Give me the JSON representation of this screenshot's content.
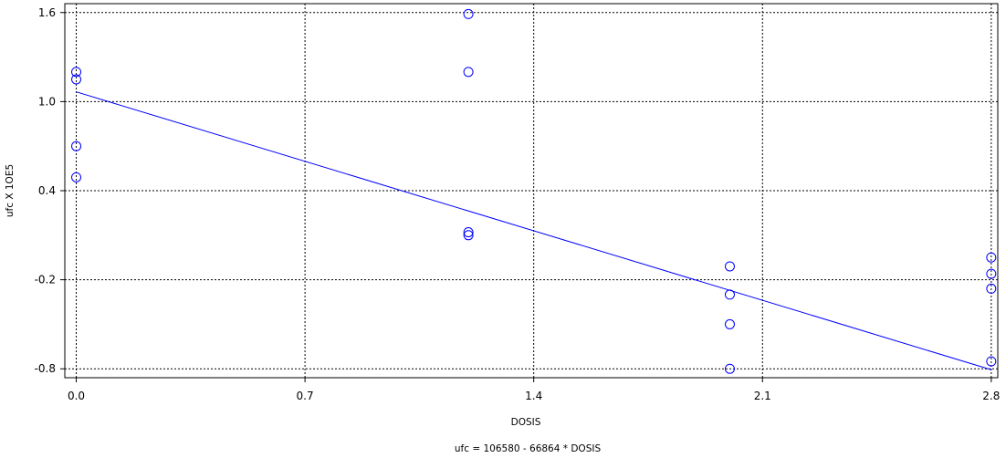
{
  "chart_data": {
    "type": "scatter",
    "xlabel": "DOSIS",
    "ylabel": "ufc X 1OE5",
    "equation": "ufc = 106580 -  66864 * DOSIS",
    "xlim": [
      -0.035,
      2.82
    ],
    "ylim": [
      -0.86,
      1.66
    ],
    "x_ticks": [
      0.0,
      0.7,
      1.4,
      2.1,
      2.8
    ],
    "x_tick_labels": [
      "0.0",
      "0.7",
      "1.4",
      "2.1",
      "2.8"
    ],
    "y_ticks": [
      -0.8,
      -0.2,
      0.4,
      1.0,
      1.6
    ],
    "y_tick_labels": [
      "-0.8",
      "-0.2",
      "0.4",
      "1.0",
      "1.6"
    ],
    "grid": true,
    "series": [
      {
        "marker": "circle",
        "color": "#0000ff",
        "points": [
          {
            "x": 0.0,
            "y": 1.2
          },
          {
            "x": 0.0,
            "y": 1.15
          },
          {
            "x": 0.0,
            "y": 0.7
          },
          {
            "x": 0.0,
            "y": 0.49
          },
          {
            "x": 1.2,
            "y": 1.59
          },
          {
            "x": 1.2,
            "y": 1.2
          },
          {
            "x": 1.2,
            "y": 0.12
          },
          {
            "x": 1.2,
            "y": 0.1
          },
          {
            "x": 2.0,
            "y": -0.11
          },
          {
            "x": 2.0,
            "y": -0.3
          },
          {
            "x": 2.0,
            "y": -0.5
          },
          {
            "x": 2.0,
            "y": -0.8
          },
          {
            "x": 2.8,
            "y": -0.05
          },
          {
            "x": 2.8,
            "y": -0.16
          },
          {
            "x": 2.8,
            "y": -0.26
          },
          {
            "x": 2.8,
            "y": -0.75
          }
        ]
      }
    ],
    "regression": {
      "intercept": 1.0658,
      "slope": -0.66864,
      "color": "#0000ff"
    }
  }
}
